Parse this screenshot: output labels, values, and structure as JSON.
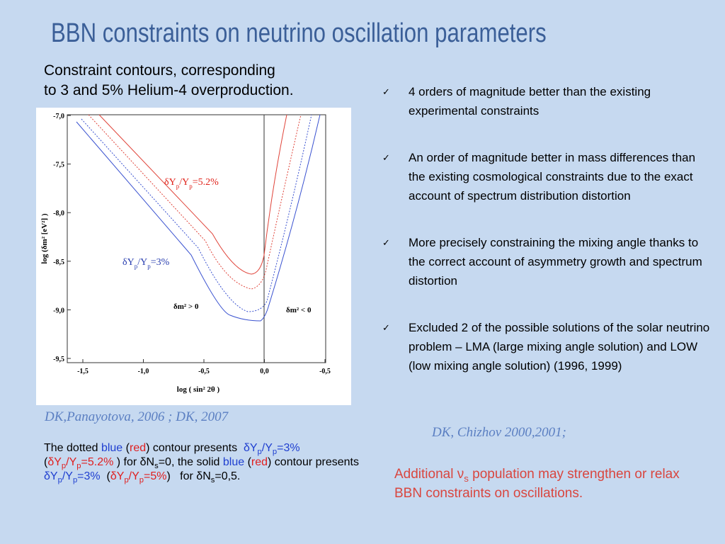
{
  "title": "BBN constraints on neutrino oscillation parameters",
  "subtitle": [
    "Constraint contours, corresponding",
    "to 3 and 5% Helium-4 overproduction."
  ],
  "figure": {
    "y_label": "log (δm² [eV²] )",
    "x_label": "log ( sin² 2θ )",
    "yticks": [
      "-7,0",
      "-7,5",
      "-8,0",
      "-8,5",
      "-9,0",
      "-9,5"
    ],
    "xticks": [
      "-1,5",
      "-1,0",
      "-0,5",
      "0,0",
      "-0,5"
    ],
    "red_label": [
      {
        "text": "δY"
      },
      {
        "text": "p",
        "sub": true
      },
      {
        "text": "/Y"
      },
      {
        "text": "p",
        "sub": true
      },
      {
        "text": "=5.2%"
      }
    ],
    "blue_label": [
      {
        "text": "δY"
      },
      {
        "text": "p",
        "sub": true
      },
      {
        "text": "/Y"
      },
      {
        "text": "p",
        "sub": true
      },
      {
        "text": "=3%"
      }
    ],
    "left_region": "δm² > 0",
    "right_region": "δm² < 0"
  },
  "figure_credit": "DK,Panayotova, 2006 ; DK, 2007",
  "bullets": [
    "4 orders of magnitude better than the existing experimental constraints",
    "An order of magnitude better in mass differences than the existing cosmological constraints due to the exact account of spectrum distribution distortion",
    "More precisely constraining the mixing angle thanks to the correct account of asymmetry growth and spectrum distortion",
    "Excluded 2 of the possible solutions of the solar neutrino problem – LMA (large mixing angle solution) and LOW (low mixing angle solution) (1996, 1999)"
  ],
  "bullet_credit": "DK, Chizhov 2000,2001;",
  "caption": [
    {
      "text": "The dotted "
    },
    {
      "text": "blue",
      "color": "blue"
    },
    {
      "text": " ("
    },
    {
      "text": "red",
      "color": "red"
    },
    {
      "text": ") contour presents  "
    },
    {
      "text": "δY",
      "color": "blue"
    },
    {
      "text": "p",
      "color": "blue",
      "sub": true
    },
    {
      "text": "/Y",
      "color": "blue"
    },
    {
      "text": "p",
      "color": "blue",
      "sub": true
    },
    {
      "text": "=3%",
      "color": "blue"
    },
    {
      "text": " ("
    },
    {
      "text": "δY",
      "color": "red"
    },
    {
      "text": "p",
      "color": "red",
      "sub": true
    },
    {
      "text": "/Y",
      "color": "red"
    },
    {
      "text": "p",
      "color": "red",
      "sub": true
    },
    {
      "text": "=5.2%",
      "color": "red"
    },
    {
      "text": " ) for δN"
    },
    {
      "text": "s",
      "sub": true
    },
    {
      "text": "=0, the solid "
    },
    {
      "text": "blue",
      "color": "blue"
    },
    {
      "text": " ("
    },
    {
      "text": "red",
      "color": "red"
    },
    {
      "text": ") contour presents  "
    },
    {
      "text": "δY",
      "color": "blue"
    },
    {
      "text": "p",
      "color": "blue",
      "sub": true
    },
    {
      "text": "/Y",
      "color": "blue"
    },
    {
      "text": "p",
      "color": "blue",
      "sub": true
    },
    {
      "text": "=3%",
      "color": "blue"
    },
    {
      "text": "  ("
    },
    {
      "text": "δY",
      "color": "red"
    },
    {
      "text": "p",
      "color": "red",
      "sub": true
    },
    {
      "text": "/Y",
      "color": "red"
    },
    {
      "text": "p",
      "color": "red",
      "sub": true
    },
    {
      "text": "=5%",
      "color": "red"
    },
    {
      "text": ")   for δN"
    },
    {
      "text": "s",
      "sub": true
    },
    {
      "text": "=0,5."
    }
  ],
  "note": [
    {
      "text": "Additional ν"
    },
    {
      "text": "s",
      "sub": true
    },
    {
      "text": " population may strengthen or relax BBN constraints on oscillations."
    }
  ]
}
